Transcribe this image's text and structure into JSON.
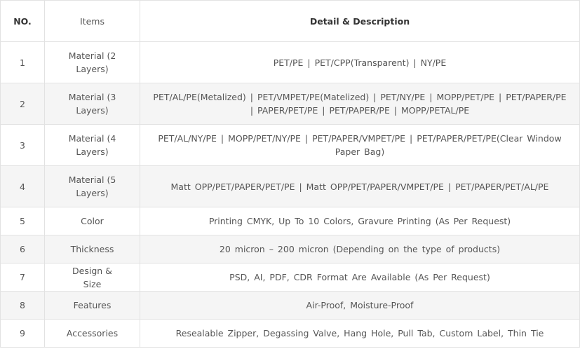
{
  "table": {
    "headers": [
      "NO.",
      "Items",
      "Detail & Description"
    ],
    "rows": [
      [
        "1",
        "Material (2 Layers)",
        "PET/PE | PET/CPP(Transparent) | NY/PE"
      ],
      [
        "2",
        "Material (3 Layers)",
        "PET/AL/PE(Metalized) | PET/VMPET/PE(Matelized) | PET/NY/PE | MOPP/PET/PE | PET/PAPER/PE | PAPER/PET/PE | PET/PAPER/PE | MOPP/PETAL/PE"
      ],
      [
        "3",
        "Material (4 Layers)",
        "PET/AL/NY/PE | MOPP/PET/NY/PE | PET/PAPER/VMPET/PE | PET/PAPER/PET/PE(Clear Window Paper Bag)"
      ],
      [
        "4",
        "Material (5 Layers)",
        "Matt OPP/PET/PAPER/PET/PE | Matt OPP/PET/PAPER/VMPET/PE | PET/PAPER/PET/AL/PE"
      ],
      [
        "5",
        "Color",
        "Printing CMYK, Up To 10 Colors, Gravure Printing (As Per Request)"
      ],
      [
        "6",
        "Thickness",
        "20 micron – 200 micron (Depending on the type of products)"
      ],
      [
        "7",
        "Design & Size",
        "PSD, AI, PDF, CDR Format Are Available (As Per Request)"
      ],
      [
        "8",
        "Features",
        "Air-Proof, Moisture-Proof"
      ],
      [
        "9",
        "Accessories",
        "Resealable Zipper, Degassing Valve, Hang Hole, Pull Tab, Custom Label, Thin Tie"
      ]
    ]
  }
}
